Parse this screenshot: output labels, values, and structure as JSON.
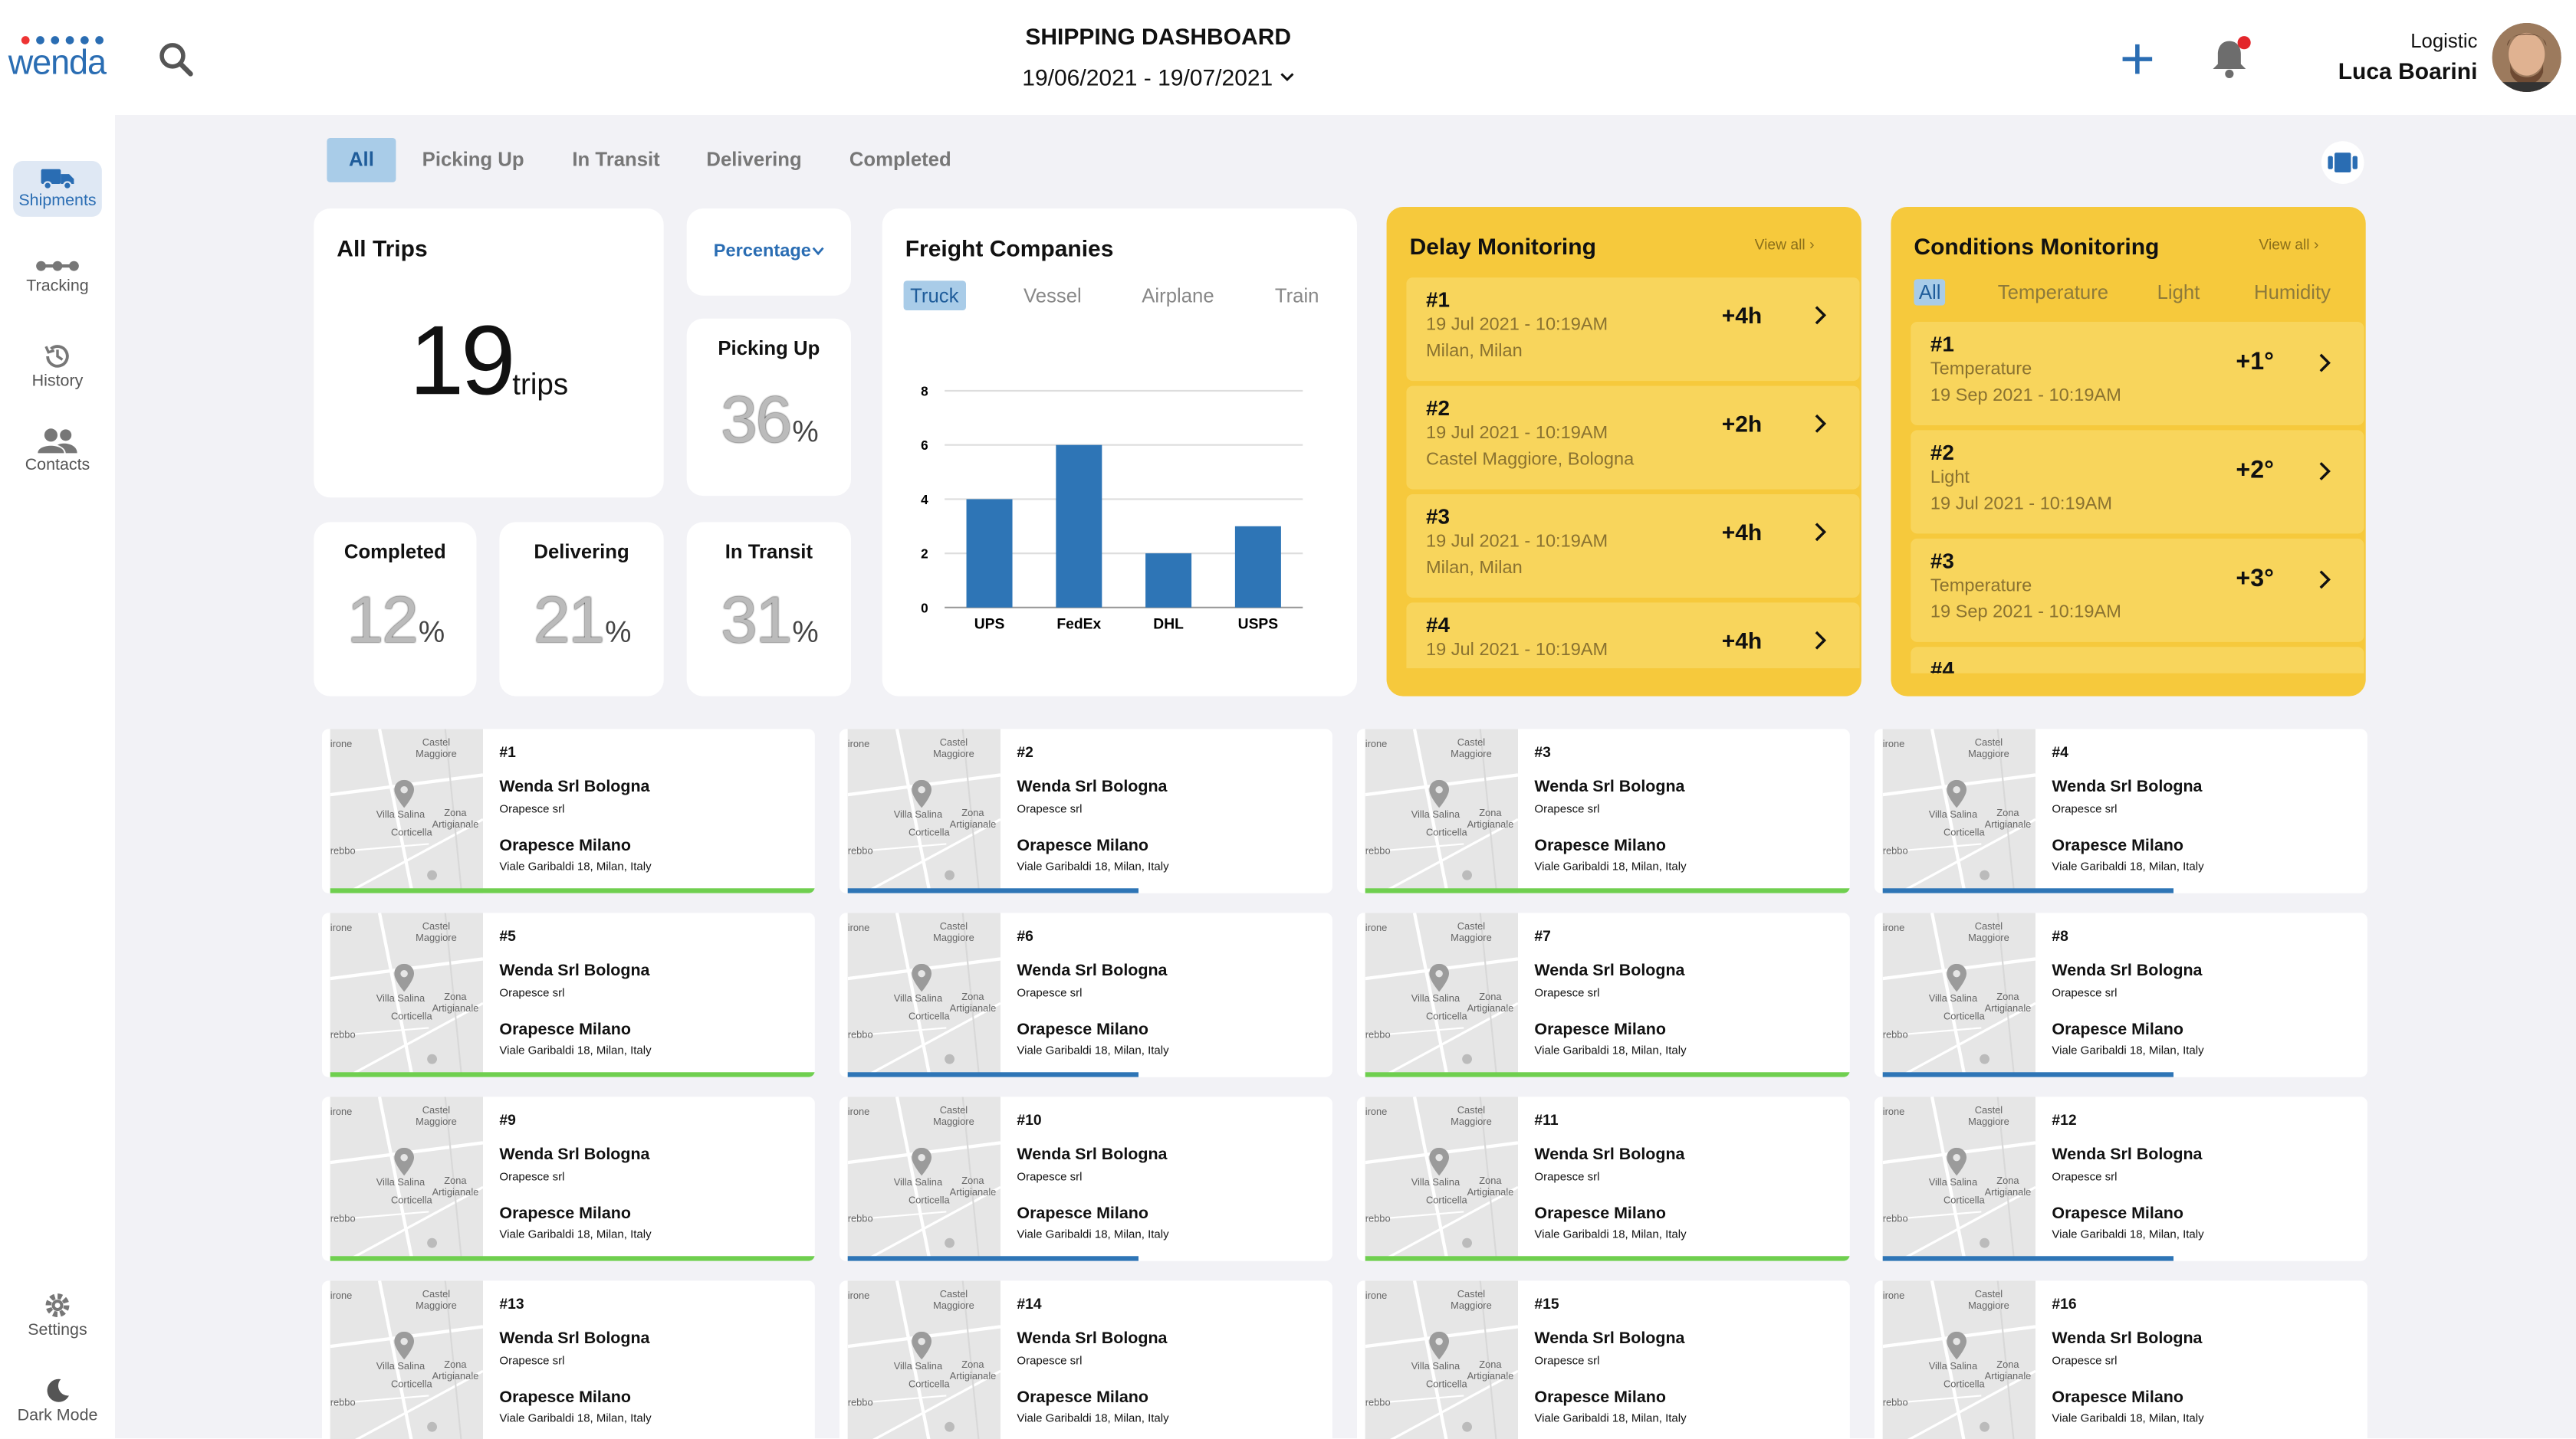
{
  "brand": {
    "name": "wenda"
  },
  "header": {
    "title": "SHIPPING DASHBOARD",
    "date_range": "19/06/2021 - 19/07/2021",
    "user_role": "Logistic",
    "user_name": "Luca Boarini"
  },
  "sidebar": {
    "items": [
      {
        "label": "Shipments",
        "icon": "truck-icon"
      },
      {
        "label": "Tracking",
        "icon": "route-icon"
      },
      {
        "label": "History",
        "icon": "history-icon"
      },
      {
        "label": "Contacts",
        "icon": "contacts-icon"
      }
    ],
    "bottom": [
      {
        "label": "Settings",
        "icon": "gear-icon"
      },
      {
        "label": "Dark Mode",
        "icon": "moon-icon"
      }
    ]
  },
  "tabs": [
    "All",
    "Picking Up",
    "In Transit",
    "Delivering",
    "Completed"
  ],
  "stats": {
    "all_trips": {
      "title": "All Trips",
      "value": "19",
      "unit": "trips"
    },
    "mode_select": "Percentage",
    "picking_up": {
      "title": "Picking Up",
      "value": "36",
      "unit": "%"
    },
    "completed": {
      "title": "Completed",
      "value": "12",
      "unit": "%"
    },
    "delivering": {
      "title": "Delivering",
      "value": "21",
      "unit": "%"
    },
    "in_transit": {
      "title": "In Transit",
      "value": "31",
      "unit": "%"
    }
  },
  "freight": {
    "title": "Freight Companies",
    "tabs": [
      "Truck",
      "Vessel",
      "Airplane",
      "Train"
    ]
  },
  "chart_data": {
    "type": "bar",
    "categories": [
      "UPS",
      "FedEx",
      "DHL",
      "USPS"
    ],
    "values": [
      4,
      6,
      2,
      3
    ],
    "ylim": [
      0,
      8
    ],
    "yticks": [
      "0",
      "2",
      "4",
      "6",
      "8"
    ],
    "grid": true,
    "color": "#2e75b6"
  },
  "delay": {
    "title": "Delay Monitoring",
    "view_all": "View all",
    "items": [
      {
        "num": "#1",
        "date": "19 Jul 2021 - 10:19AM",
        "place": "Milan, Milan",
        "delta": "+4h"
      },
      {
        "num": "#2",
        "date": "19 Jul 2021 - 10:19AM",
        "place": "Castel Maggiore, Bologna",
        "delta": "+2h"
      },
      {
        "num": "#3",
        "date": "19 Jul 2021 - 10:19AM",
        "place": "Milan, Milan",
        "delta": "+4h"
      },
      {
        "num": "#4",
        "date": "19 Jul 2021 - 10:19AM",
        "place": "",
        "delta": "+4h"
      }
    ]
  },
  "conditions": {
    "title": "Conditions Monitoring",
    "view_all": "View all",
    "tabs": [
      "All",
      "Temperature",
      "Light",
      "Humidity"
    ],
    "items": [
      {
        "num": "#1",
        "type": "Temperature",
        "date": "19 Sep 2021 - 10:19AM",
        "delta": "+1°"
      },
      {
        "num": "#2",
        "type": "Light",
        "date": "19 Jul 2021 - 10:19AM",
        "delta": "+2°"
      },
      {
        "num": "#3",
        "type": "Temperature",
        "date": "19 Sep 2021 - 10:19AM",
        "delta": "+3°"
      },
      {
        "num": "#4",
        "type": "",
        "date": "",
        "delta": ""
      }
    ]
  },
  "map_labels": {
    "castel": "Castel",
    "maggiore": "Maggiore",
    "zona": "Zona",
    "artigianale": "Artigianale",
    "villa": "Villa Salina",
    "corticella": "Corticella",
    "rone": "irone",
    "rebbo": "rebbo"
  },
  "trips": [
    {
      "id": "#1",
      "from": "Wenda Srl Bologna",
      "from_sub": "Orapesce srl",
      "to": "Orapesce Milano",
      "to_sub": "Viale Garibaldi 18, Milan, Italy",
      "progress": 1.0,
      "color": "#6fcf4f"
    },
    {
      "id": "#2",
      "from": "Wenda Srl Bologna",
      "from_sub": "Orapesce srl",
      "to": "Orapesce Milano",
      "to_sub": "Viale Garibaldi 18, Milan, Italy",
      "progress": 0.6,
      "color": "#2e75b6"
    },
    {
      "id": "#3",
      "from": "Wenda Srl Bologna",
      "from_sub": "Orapesce srl",
      "to": "Orapesce Milano",
      "to_sub": "Viale Garibaldi 18, Milan, Italy",
      "progress": 1.0,
      "color": "#6fcf4f"
    },
    {
      "id": "#4",
      "from": "Wenda Srl Bologna",
      "from_sub": "Orapesce srl",
      "to": "Orapesce Milano",
      "to_sub": "Viale Garibaldi 18, Milan, Italy",
      "progress": 0.6,
      "color": "#2e75b6"
    },
    {
      "id": "#5",
      "from": "Wenda Srl Bologna",
      "from_sub": "Orapesce srl",
      "to": "Orapesce Milano",
      "to_sub": "Viale Garibaldi 18, Milan, Italy",
      "progress": 1.0,
      "color": "#6fcf4f"
    },
    {
      "id": "#6",
      "from": "Wenda Srl Bologna",
      "from_sub": "Orapesce srl",
      "to": "Orapesce Milano",
      "to_sub": "Viale Garibaldi 18, Milan, Italy",
      "progress": 0.6,
      "color": "#2e75b6"
    },
    {
      "id": "#7",
      "from": "Wenda Srl Bologna",
      "from_sub": "Orapesce srl",
      "to": "Orapesce Milano",
      "to_sub": "Viale Garibaldi 18, Milan, Italy",
      "progress": 1.0,
      "color": "#6fcf4f"
    },
    {
      "id": "#8",
      "from": "Wenda Srl Bologna",
      "from_sub": "Orapesce srl",
      "to": "Orapesce Milano",
      "to_sub": "Viale Garibaldi 18, Milan, Italy",
      "progress": 0.6,
      "color": "#2e75b6"
    },
    {
      "id": "#9",
      "from": "Wenda Srl Bologna",
      "from_sub": "Orapesce srl",
      "to": "Orapesce Milano",
      "to_sub": "Viale Garibaldi 18, Milan, Italy",
      "progress": 1.0,
      "color": "#6fcf4f"
    },
    {
      "id": "#10",
      "from": "Wenda Srl Bologna",
      "from_sub": "Orapesce srl",
      "to": "Orapesce Milano",
      "to_sub": "Viale Garibaldi 18, Milan, Italy",
      "progress": 0.6,
      "color": "#2e75b6"
    },
    {
      "id": "#11",
      "from": "Wenda Srl Bologna",
      "from_sub": "Orapesce srl",
      "to": "Orapesce Milano",
      "to_sub": "Viale Garibaldi 18, Milan, Italy",
      "progress": 1.0,
      "color": "#6fcf4f"
    },
    {
      "id": "#12",
      "from": "Wenda Srl Bologna",
      "from_sub": "Orapesce srl",
      "to": "Orapesce Milano",
      "to_sub": "Viale Garibaldi 18, Milan, Italy",
      "progress": 0.6,
      "color": "#2e75b6"
    },
    {
      "id": "#13",
      "from": "Wenda Srl Bologna",
      "from_sub": "Orapesce srl",
      "to": "Orapesce Milano",
      "to_sub": "Viale Garibaldi 18, Milan, Italy",
      "progress": 1.0,
      "color": "#6fcf4f"
    },
    {
      "id": "#14",
      "from": "Wenda Srl Bologna",
      "from_sub": "Orapesce srl",
      "to": "Orapesce Milano",
      "to_sub": "Viale Garibaldi 18, Milan, Italy",
      "progress": 0.6,
      "color": "#2e75b6"
    },
    {
      "id": "#15",
      "from": "Wenda Srl Bologna",
      "from_sub": "Orapesce srl",
      "to": "Orapesce Milano",
      "to_sub": "Viale Garibaldi 18, Milan, Italy",
      "progress": 1.0,
      "color": "#6fcf4f"
    },
    {
      "id": "#16",
      "from": "Wenda Srl Bologna",
      "from_sub": "Orapesce srl",
      "to": "Orapesce Milano",
      "to_sub": "Viale Garibaldi 18, Milan, Italy",
      "progress": 0.6,
      "color": "#2e75b6"
    }
  ]
}
